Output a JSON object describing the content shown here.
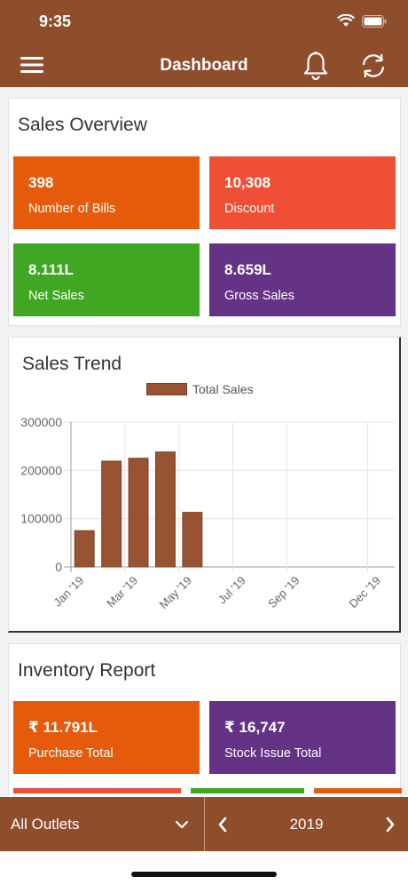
{
  "status": {
    "time": "9:35"
  },
  "nav": {
    "title": "Dashboard"
  },
  "sales_overview": {
    "title": "Sales Overview",
    "tiles": [
      {
        "value": "398",
        "label": "Number of Bills",
        "color": "#e65a0c"
      },
      {
        "value": "10,308",
        "label": "Discount",
        "color": "#ef5035"
      },
      {
        "value": "8.111L",
        "label": "Net Sales",
        "color": "#3fa722"
      },
      {
        "value": "8.659L",
        "label": "Gross Sales",
        "color": "#643385"
      }
    ]
  },
  "sales_trend": {
    "title": "Sales Trend",
    "legend": "Total Sales"
  },
  "chart_data": {
    "type": "bar",
    "categories": [
      "Jan '19",
      "Feb '19",
      "Mar '19",
      "Apr '19",
      "May '19",
      "Jun '19",
      "Jul '19",
      "Aug '19",
      "Sep '19",
      "Oct '19",
      "Nov '19",
      "Dec '19"
    ],
    "x_tick_labels": [
      "Jan '19",
      "Mar '19",
      "May '19",
      "Jul '19",
      "Sep '19",
      "Dec '19"
    ],
    "series": [
      {
        "name": "Total Sales",
        "values": [
          75000,
          219000,
          225000,
          238000,
          113000,
          0,
          0,
          0,
          0,
          0,
          0,
          0
        ]
      }
    ],
    "y_ticks": [
      "0",
      "100000",
      "200000",
      "300000"
    ],
    "ylim": [
      0,
      300000
    ],
    "grid": true,
    "legend_position": "top",
    "bar_color": "#985333"
  },
  "inventory": {
    "title": "Inventory Report",
    "tiles": [
      {
        "value": "₹ 11.791L",
        "label": "Purchase Total",
        "color": "#e65a0c"
      },
      {
        "value": "₹ 16,747",
        "label": "Stock Issue Total",
        "color": "#643385"
      }
    ]
  },
  "bottom": {
    "outlet": "All Outlets",
    "year": "2019"
  }
}
